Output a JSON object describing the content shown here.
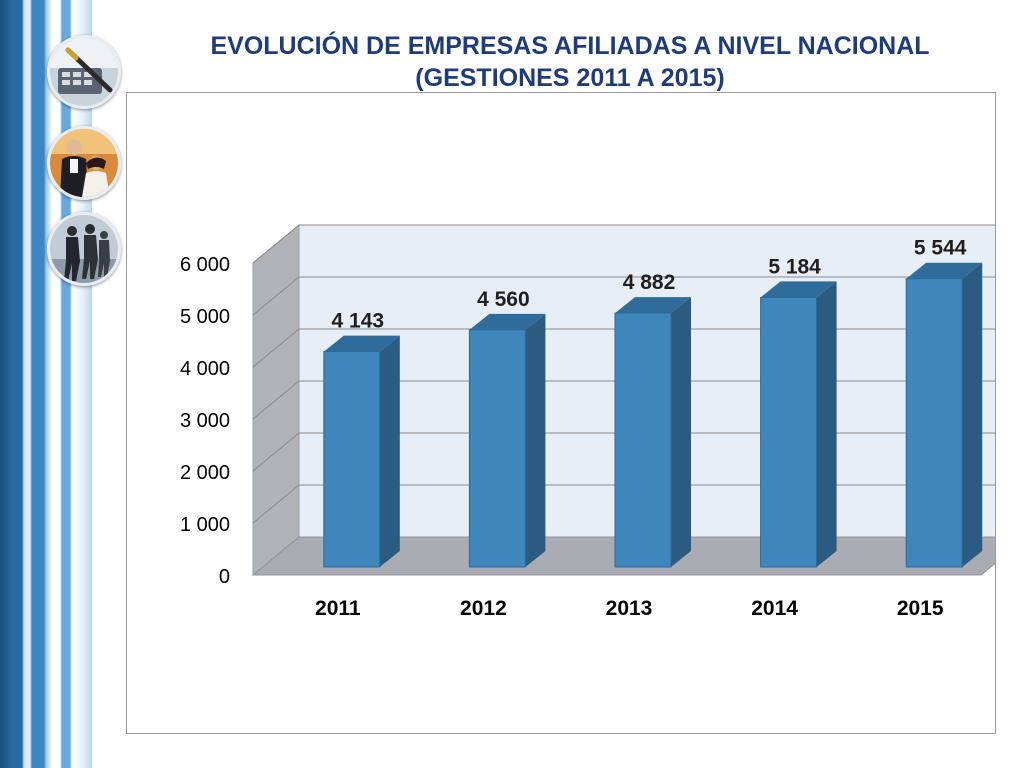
{
  "slide": {
    "title_line1": "EVOLUCIÓN DE EMPRESAS AFILIADAS A NIVEL NACIONAL",
    "title_line2": "(GESTIONES 2011 A 2015)"
  },
  "badges": [
    {
      "icon": "pen-and-calculator-photo-icon"
    },
    {
      "icon": "business-people-meeting-photo-icon"
    },
    {
      "icon": "business-people-walking-photo-icon"
    }
  ],
  "colors": {
    "title": "#1f3b78",
    "bar_front": "#3f86bb",
    "bar_side": "#2b5b80",
    "bar_top": "#2f6c9c",
    "back_wall": "#e8eef5",
    "side_wall": "#b0b3b8",
    "floor": "#a9adb3",
    "gridline": "#8a8a8a"
  },
  "chart_data": {
    "type": "bar",
    "style": "3d-column",
    "categories": [
      "2011",
      "2012",
      "2013",
      "2014",
      "2015"
    ],
    "values": [
      4143,
      4560,
      4882,
      5184,
      5544
    ],
    "data_labels": [
      "4 143",
      "4 560",
      "4 882",
      "5 184",
      "5 544"
    ],
    "y_ticks": [
      0,
      1000,
      2000,
      3000,
      4000,
      5000,
      6000
    ],
    "y_tick_labels": [
      "0",
      "1 000",
      "2 000",
      "3 000",
      "4 000",
      "5 000",
      "6 000"
    ],
    "ylim": [
      0,
      6000
    ],
    "grid": true,
    "legend": "none"
  }
}
